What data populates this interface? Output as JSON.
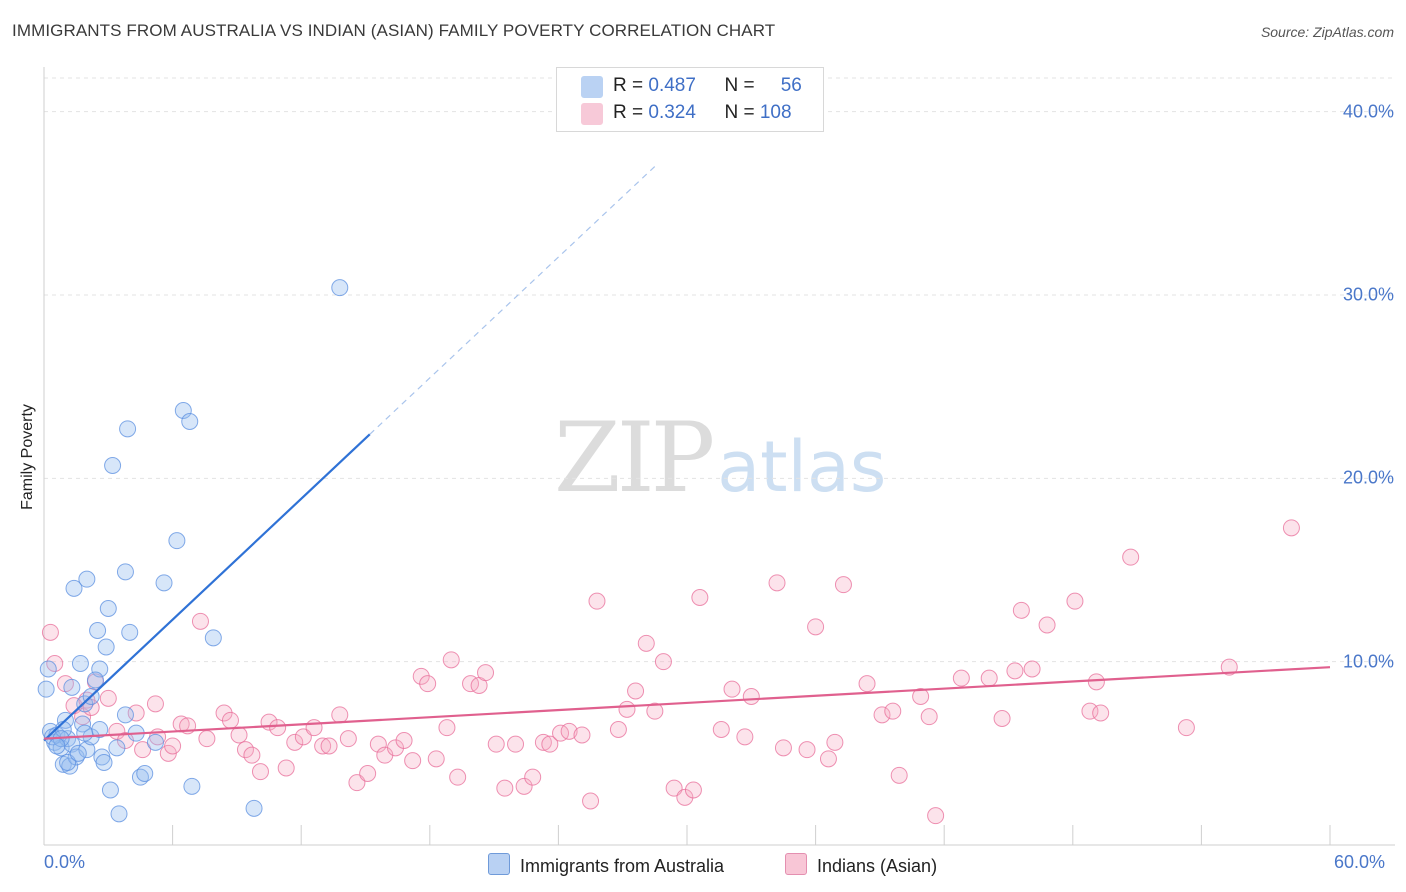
{
  "title": "IMMIGRANTS FROM AUSTRALIA VS INDIAN (ASIAN) FAMILY POVERTY CORRELATION CHART",
  "source": "Source: ZipAtlas.com",
  "watermark": {
    "zip": "ZIP",
    "atlas": "atlas"
  },
  "legend": {
    "rows": [
      {
        "r_label": "R = ",
        "r_value": "0.487",
        "n_label": "N = ",
        "n_value": "56",
        "color": "#9ec0ee"
      },
      {
        "r_label": "R = ",
        "r_value": "0.324",
        "n_label": "N = ",
        "n_value": "108",
        "color": "#f5b3c8"
      }
    ]
  },
  "bottom_legend": [
    {
      "label": "Immigrants from Australia",
      "color": "#b9d1f3"
    },
    {
      "label": "Indians (Asian)",
      "color": "#f8c6d6"
    }
  ],
  "chart_data": {
    "type": "scatter",
    "title": "IMMIGRANTS FROM AUSTRALIA VS INDIAN (ASIAN) FAMILY POVERTY CORRELATION CHART",
    "xlabel": "",
    "ylabel": "Family Poverty",
    "xlim": [
      0,
      60
    ],
    "ylim": [
      0,
      42
    ],
    "x_tick_labels": [
      "0.0%",
      "60.0%"
    ],
    "y_ticks": [
      10,
      20,
      30,
      40
    ],
    "y_tick_labels": [
      "10.0%",
      "20.0%",
      "30.0%",
      "40.0%"
    ],
    "grid": true,
    "series": [
      {
        "name": "Immigrants from Australia",
        "color": "#5b8fe0",
        "fill": "rgba(150,190,240,0.38)",
        "R": 0.487,
        "N": 56,
        "trend": {
          "x0": 0,
          "y0": 5.7,
          "x1": 15.2,
          "y1": 22.4,
          "dashed_to_x": 28.5
        },
        "points": [
          [
            0.1,
            8.5
          ],
          [
            0.3,
            6.2
          ],
          [
            0.5,
            5.6
          ],
          [
            0.6,
            6.0
          ],
          [
            0.8,
            5.3
          ],
          [
            0.9,
            4.4
          ],
          [
            1.0,
            6.8
          ],
          [
            1.1,
            5.8
          ],
          [
            1.2,
            4.3
          ],
          [
            1.3,
            5.5
          ],
          [
            1.5,
            4.8
          ],
          [
            1.4,
            14.0
          ],
          [
            1.7,
            9.9
          ],
          [
            1.8,
            6.6
          ],
          [
            1.9,
            7.7
          ],
          [
            2.0,
            14.5
          ],
          [
            2.2,
            8.1
          ],
          [
            2.0,
            5.2
          ],
          [
            2.2,
            5.9
          ],
          [
            2.5,
            11.7
          ],
          [
            2.6,
            9.6
          ],
          [
            2.7,
            4.8
          ],
          [
            2.8,
            4.5
          ],
          [
            2.9,
            10.8
          ],
          [
            3.0,
            12.9
          ],
          [
            3.1,
            3.0
          ],
          [
            3.2,
            20.7
          ],
          [
            3.4,
            5.3
          ],
          [
            3.5,
            1.7
          ],
          [
            3.8,
            7.1
          ],
          [
            3.8,
            14.9
          ],
          [
            3.9,
            22.7
          ],
          [
            4.0,
            11.6
          ],
          [
            4.3,
            6.1
          ],
          [
            4.5,
            3.7
          ],
          [
            4.7,
            3.9
          ],
          [
            5.2,
            5.6
          ],
          [
            5.6,
            14.3
          ],
          [
            6.2,
            16.6
          ],
          [
            6.5,
            23.7
          ],
          [
            6.8,
            23.1
          ],
          [
            6.9,
            3.2
          ],
          [
            7.9,
            11.3
          ],
          [
            9.8,
            2.0
          ],
          [
            13.8,
            30.4
          ],
          [
            0.4,
            5.9
          ],
          [
            0.9,
            6.3
          ],
          [
            1.1,
            4.5
          ],
          [
            1.3,
            8.6
          ],
          [
            0.8,
            5.8
          ],
          [
            1.6,
            5.0
          ],
          [
            2.4,
            9.0
          ],
          [
            0.2,
            9.6
          ],
          [
            1.9,
            6.1
          ],
          [
            0.6,
            5.4
          ],
          [
            2.6,
            6.3
          ]
        ]
      },
      {
        "name": "Indians (Asian)",
        "color": "#e86e9a",
        "fill": "rgba(245,170,195,0.33)",
        "R": 0.324,
        "N": 108,
        "trend": {
          "x0": 0,
          "y0": 5.8,
          "x1": 60,
          "y1": 9.7
        },
        "points": [
          [
            0.3,
            11.6
          ],
          [
            0.5,
            9.9
          ],
          [
            1.0,
            8.8
          ],
          [
            1.4,
            7.6
          ],
          [
            1.8,
            7.0
          ],
          [
            2.0,
            7.9
          ],
          [
            2.2,
            7.5
          ],
          [
            2.4,
            8.9
          ],
          [
            3.0,
            8.0
          ],
          [
            3.4,
            6.2
          ],
          [
            3.8,
            5.7
          ],
          [
            4.3,
            7.2
          ],
          [
            4.6,
            5.2
          ],
          [
            5.3,
            5.9
          ],
          [
            5.2,
            7.7
          ],
          [
            5.8,
            5.0
          ],
          [
            6.0,
            5.4
          ],
          [
            6.4,
            6.6
          ],
          [
            6.7,
            6.5
          ],
          [
            7.3,
            12.2
          ],
          [
            7.6,
            5.8
          ],
          [
            8.4,
            7.2
          ],
          [
            8.7,
            6.8
          ],
          [
            9.1,
            6.0
          ],
          [
            9.4,
            5.2
          ],
          [
            9.7,
            4.9
          ],
          [
            10.1,
            4.0
          ],
          [
            10.5,
            6.7
          ],
          [
            10.9,
            6.4
          ],
          [
            11.3,
            4.2
          ],
          [
            11.7,
            5.6
          ],
          [
            12.1,
            5.9
          ],
          [
            12.6,
            6.4
          ],
          [
            13.0,
            5.4
          ],
          [
            13.3,
            5.4
          ],
          [
            13.8,
            7.1
          ],
          [
            14.2,
            5.8
          ],
          [
            14.6,
            3.4
          ],
          [
            15.1,
            3.9
          ],
          [
            15.6,
            5.5
          ],
          [
            15.9,
            4.9
          ],
          [
            16.4,
            5.3
          ],
          [
            16.8,
            5.7
          ],
          [
            17.2,
            4.6
          ],
          [
            17.6,
            9.2
          ],
          [
            17.9,
            8.8
          ],
          [
            18.3,
            4.7
          ],
          [
            18.8,
            6.4
          ],
          [
            19.0,
            10.1
          ],
          [
            19.3,
            3.7
          ],
          [
            19.9,
            8.8
          ],
          [
            20.3,
            8.7
          ],
          [
            20.6,
            9.4
          ],
          [
            21.1,
            5.5
          ],
          [
            21.5,
            3.1
          ],
          [
            22.0,
            5.5
          ],
          [
            22.4,
            3.2
          ],
          [
            22.8,
            3.7
          ],
          [
            23.3,
            5.6
          ],
          [
            23.6,
            5.5
          ],
          [
            24.1,
            6.1
          ],
          [
            24.5,
            6.2
          ],
          [
            25.1,
            6.0
          ],
          [
            25.5,
            2.4
          ],
          [
            25.8,
            13.3
          ],
          [
            26.8,
            6.3
          ],
          [
            27.2,
            7.4
          ],
          [
            27.6,
            8.4
          ],
          [
            28.1,
            11.0
          ],
          [
            28.5,
            7.3
          ],
          [
            28.9,
            10.0
          ],
          [
            29.4,
            3.1
          ],
          [
            29.9,
            2.6
          ],
          [
            30.3,
            3.0
          ],
          [
            30.6,
            13.5
          ],
          [
            31.6,
            6.3
          ],
          [
            32.1,
            8.5
          ],
          [
            32.7,
            5.9
          ],
          [
            33.0,
            8.1
          ],
          [
            34.2,
            14.3
          ],
          [
            34.5,
            5.3
          ],
          [
            35.6,
            5.2
          ],
          [
            36.0,
            11.9
          ],
          [
            36.6,
            4.7
          ],
          [
            36.9,
            5.6
          ],
          [
            37.3,
            14.2
          ],
          [
            38.4,
            8.8
          ],
          [
            39.1,
            7.1
          ],
          [
            39.6,
            7.3
          ],
          [
            39.9,
            3.8
          ],
          [
            40.9,
            8.1
          ],
          [
            41.3,
            7.0
          ],
          [
            41.6,
            1.6
          ],
          [
            42.8,
            9.1
          ],
          [
            44.1,
            9.1
          ],
          [
            44.7,
            6.9
          ],
          [
            45.3,
            9.5
          ],
          [
            45.6,
            12.8
          ],
          [
            46.1,
            9.6
          ],
          [
            46.8,
            12.0
          ],
          [
            48.1,
            13.3
          ],
          [
            48.8,
            7.3
          ],
          [
            49.1,
            8.9
          ],
          [
            49.3,
            7.2
          ],
          [
            50.7,
            15.7
          ],
          [
            53.3,
            6.4
          ],
          [
            55.3,
            9.7
          ],
          [
            58.2,
            17.3
          ]
        ]
      }
    ]
  }
}
